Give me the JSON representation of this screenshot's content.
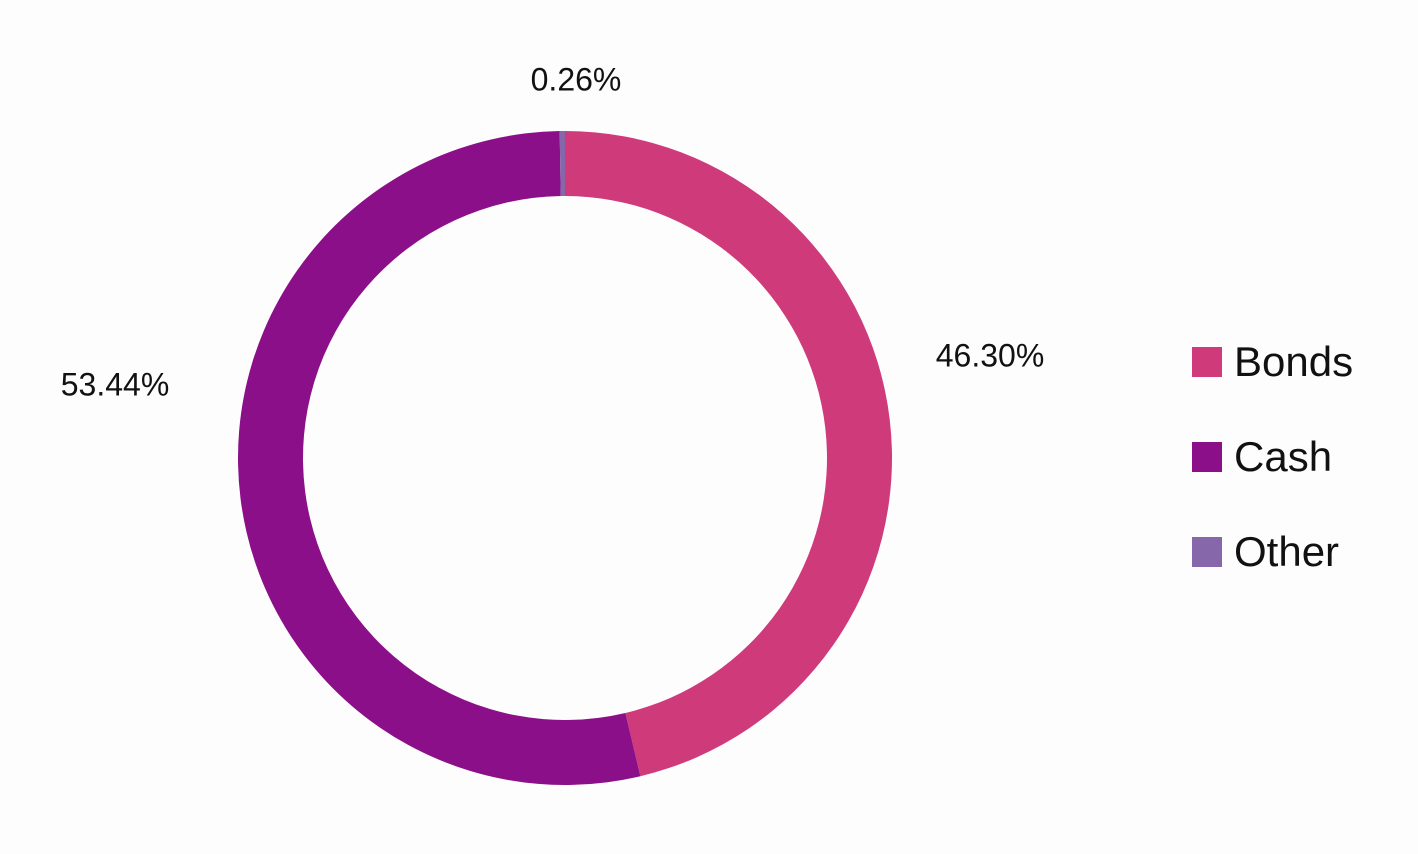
{
  "chart_data": {
    "type": "pie",
    "variant": "donut",
    "categories": [
      "Bonds",
      "Cash",
      "Other"
    ],
    "values": [
      46.3,
      53.44,
      0.26
    ],
    "data_labels": [
      "46.30%",
      "53.44%",
      "0.26%"
    ],
    "colors": [
      "#cf3a7b",
      "#8b0f88",
      "#8667a9"
    ],
    "legend": {
      "position": "right",
      "entries": [
        "Bonds",
        "Cash",
        "Other"
      ]
    },
    "title": ""
  }
}
